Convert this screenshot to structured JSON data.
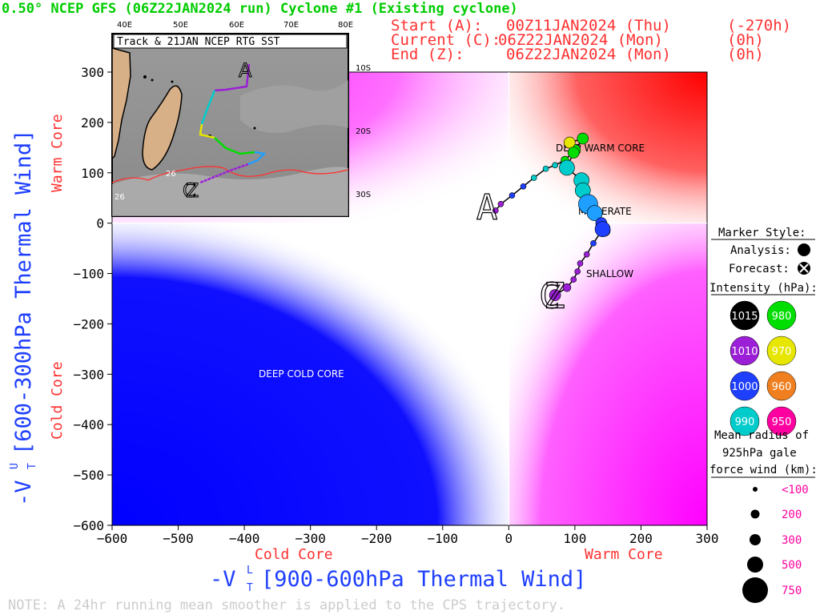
{
  "header": {
    "title": "0.50° NCEP GFS (06Z22JAN2024 run) Cyclone #1 (Existing cyclone)",
    "start_label": "Start (A):",
    "start_time": "00Z11JAN2024 (Thu)",
    "start_offset": "(-270h)",
    "current_label": "Current (C):",
    "current_time": "06Z22JAN2024 (Mon)",
    "current_offset": "(0h)",
    "end_label": "End (Z):",
    "end_time": "06Z22JAN2024 (Mon)",
    "end_offset": "(0h)"
  },
  "inset": {
    "title": "Track & 21JAN NCEP RTG SST",
    "lon_labels": [
      "40E",
      "50E",
      "60E",
      "70E",
      "80E"
    ],
    "lat_labels": [
      "10S",
      "20S",
      "30S"
    ],
    "sst_labels": [
      "26",
      "26"
    ],
    "marker_a": "A",
    "marker_c": "C",
    "marker_z": "Z"
  },
  "regions": {
    "deep_warm": "DEEP WARM CORE",
    "moderate": "MODERATE",
    "shallow": "SHALLOW",
    "deep_cold": "DEEP COLD CORE"
  },
  "axes": {
    "xlabel_main": "-V",
    "xlabel_sup": "L",
    "xlabel_sub": "T",
    "xlabel_rest": "[900-600hPa Thermal Wind]",
    "ylabel_main": "-V",
    "ylabel_sup": "U",
    "ylabel_sub": "T",
    "ylabel_rest": "[600-300hPa Thermal Wind]",
    "x_cold": "Cold Core",
    "x_warm": "Warm Core",
    "y_warm": "Warm Core",
    "y_cold": "Cold Core"
  },
  "legend": {
    "marker_style_title": "Marker Style:",
    "analysis_label": "Analysis:",
    "forecast_label": "Forecast:",
    "intensity_title": "Intensity (hPa):",
    "intensity_items": [
      {
        "value": "1015",
        "color": "#000000"
      },
      {
        "value": "980",
        "color": "#00dd00"
      },
      {
        "value": "1010",
        "color": "#9b1fd6"
      },
      {
        "value": "970",
        "color": "#e6e600"
      },
      {
        "value": "1000",
        "color": "#1f3fff"
      },
      {
        "value": "960",
        "color": "#f07f1f"
      },
      {
        "value": "990",
        "color": "#00cccc"
      },
      {
        "value": "950",
        "color": "#ff00a0"
      }
    ],
    "radius_title_1": "Mean radius of",
    "radius_title_2": "925hPa gale",
    "radius_title_3": "force wind (km):",
    "radius_items": [
      "<100",
      "200",
      "300",
      "500",
      "750"
    ]
  },
  "note": "NOTE:  A 24hr running mean smoother is applied to the CPS trajectory.",
  "colors": {
    "title_green": "#00cc00",
    "header_red": "#ff3030",
    "axis_blue": "#1f3fff",
    "warm_red": "#ff0000",
    "cold_blue": "#0000ff",
    "magenta": "#ff00ff"
  },
  "chart_data": {
    "type": "scatter",
    "xlabel": "-VTL [900-600hPa Thermal Wind]",
    "ylabel": "-VTU [600-300hPa Thermal Wind]",
    "xlim": [
      -600,
      300
    ],
    "ylim": [
      -600,
      300
    ],
    "x_ticks": [
      -600,
      -500,
      -400,
      -300,
      -200,
      -100,
      0,
      100,
      200,
      300
    ],
    "y_ticks": [
      300,
      200,
      100,
      0,
      -100,
      -200,
      -300,
      -400,
      -500,
      -600
    ],
    "x_tick_labels": [
      "-600",
      "-500",
      "-400",
      "-300",
      "-200",
      "-100",
      "0",
      "100",
      "200",
      "300"
    ],
    "y_tick_labels": [
      "300",
      "200",
      "100",
      "0",
      "-100",
      "-200",
      "-300",
      "-400",
      "-500",
      "-600"
    ],
    "start": {
      "label": "A",
      "x": -20,
      "y": 25
    },
    "current": {
      "label": "C",
      "x": 70,
      "y": -143
    },
    "end": {
      "label": "Z",
      "x": 70,
      "y": -143
    },
    "points": [
      {
        "x": -20,
        "y": 25,
        "p": 1010,
        "r": 100
      },
      {
        "x": -12,
        "y": 38,
        "p": 1010,
        "r": 100
      },
      {
        "x": 5,
        "y": 55,
        "p": 1000,
        "r": 100
      },
      {
        "x": 22,
        "y": 73,
        "p": 1000,
        "r": 100
      },
      {
        "x": 38,
        "y": 90,
        "p": 990,
        "r": 100
      },
      {
        "x": 56,
        "y": 108,
        "p": 990,
        "r": 100
      },
      {
        "x": 70,
        "y": 115,
        "p": 990,
        "r": 100
      },
      {
        "x": 85,
        "y": 125,
        "p": 980,
        "r": 200
      },
      {
        "x": 100,
        "y": 145,
        "p": 980,
        "r": 300
      },
      {
        "x": 112,
        "y": 168,
        "p": 980,
        "r": 300
      },
      {
        "x": 92,
        "y": 160,
        "p": 970,
        "r": 300
      },
      {
        "x": 98,
        "y": 140,
        "p": 980,
        "r": 300
      },
      {
        "x": 88,
        "y": 110,
        "p": 990,
        "r": 500
      },
      {
        "x": 110,
        "y": 85,
        "p": 990,
        "r": 500
      },
      {
        "x": 112,
        "y": 65,
        "p": 990,
        "r": 500
      },
      {
        "x": 120,
        "y": 38,
        "p": 990,
        "r": 750
      },
      {
        "x": 130,
        "y": 20,
        "p": 990,
        "r": 500
      },
      {
        "x": 140,
        "y": 0,
        "p": 1000,
        "r": 300
      },
      {
        "x": 145,
        "y": -15,
        "p": 1000,
        "r": 300
      },
      {
        "x": 142,
        "y": -12,
        "p": 1000,
        "r": 500
      },
      {
        "x": 128,
        "y": -40,
        "p": 1000,
        "r": 100
      },
      {
        "x": 118,
        "y": -62,
        "p": 1010,
        "r": 100
      },
      {
        "x": 108,
        "y": -80,
        "p": 1010,
        "r": 100
      },
      {
        "x": 104,
        "y": -96,
        "p": 1010,
        "r": 100
      },
      {
        "x": 98,
        "y": -112,
        "p": 1010,
        "r": 100
      },
      {
        "x": 88,
        "y": -128,
        "p": 1010,
        "r": 200
      },
      {
        "x": 70,
        "y": -143,
        "p": 1010,
        "r": 300
      }
    ]
  }
}
